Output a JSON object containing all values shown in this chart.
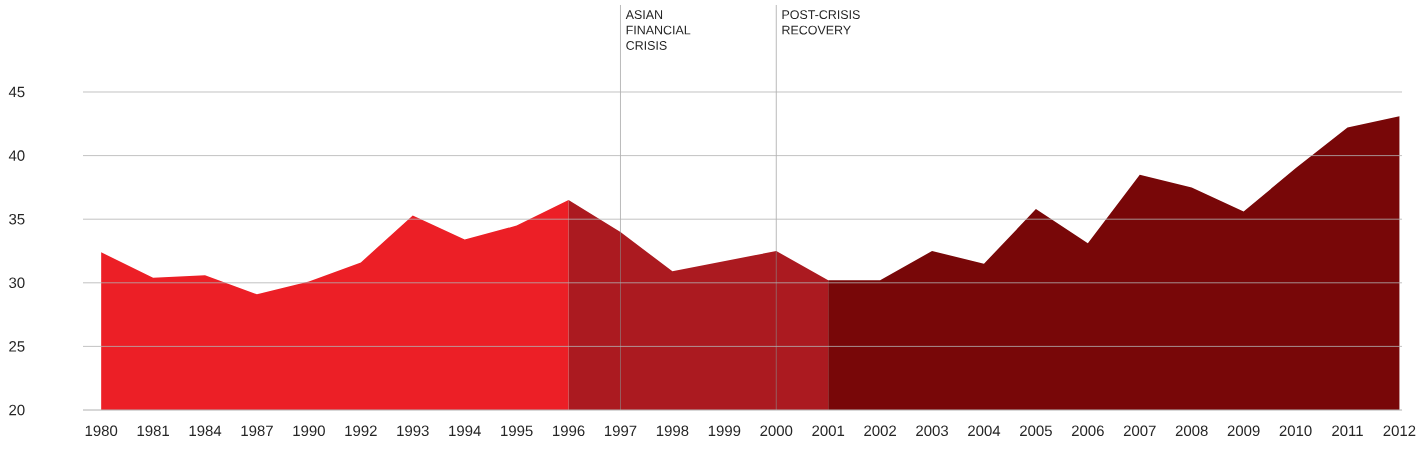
{
  "chart_data": {
    "type": "area",
    "categories": [
      "1980",
      "1981",
      "1984",
      "1987",
      "1990",
      "1992",
      "1993",
      "1994",
      "1995",
      "1996",
      "1997",
      "1998",
      "1999",
      "2000",
      "2001",
      "2002",
      "2003",
      "2004",
      "2005",
      "2006",
      "2007",
      "2008",
      "2009",
      "2010",
      "2011",
      "2012"
    ],
    "series": [
      {
        "color": "#ec1f26",
        "values": [
          32.4,
          30.4,
          30.6,
          29.1,
          30.1,
          31.6,
          35.3,
          33.4,
          34.5,
          36.5,
          null,
          null,
          null,
          null,
          null,
          null,
          null,
          null,
          null,
          null,
          null,
          null,
          null,
          null,
          null,
          null
        ]
      },
      {
        "color": "#ab1a20",
        "values": [
          null,
          null,
          null,
          null,
          null,
          null,
          null,
          null,
          null,
          36.5,
          34.0,
          30.9,
          31.7,
          32.5,
          30.2,
          null,
          null,
          null,
          null,
          null,
          null,
          null,
          null,
          null,
          null,
          null
        ]
      },
      {
        "color": "#780708",
        "values": [
          null,
          null,
          null,
          null,
          null,
          null,
          null,
          null,
          null,
          null,
          null,
          null,
          null,
          null,
          30.2,
          30.2,
          32.5,
          31.5,
          35.8,
          33.1,
          38.5,
          37.5,
          35.6,
          39.0,
          42.2,
          43.1
        ]
      }
    ],
    "ylim": [
      20,
      45
    ],
    "yticks": [
      20,
      25,
      30,
      35,
      40,
      45
    ],
    "grid": "y",
    "ref_lines": [
      {
        "axis": "x",
        "value": "1997",
        "label": "ASIAN FINANCIAL CRISIS"
      },
      {
        "axis": "x",
        "value": "2000",
        "label": "POST-CRISIS RECOVERY"
      }
    ]
  }
}
